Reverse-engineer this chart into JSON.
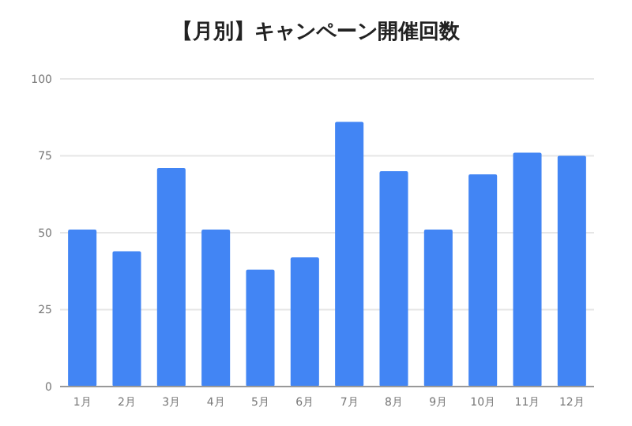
{
  "chart_data": {
    "type": "bar",
    "title": "【月別】キャンペーン開催回数",
    "categories": [
      "1月",
      "2月",
      "3月",
      "4月",
      "5月",
      "6月",
      "7月",
      "8月",
      "9月",
      "10月",
      "11月",
      "12月"
    ],
    "values": [
      51,
      44,
      71,
      51,
      38,
      42,
      86,
      70,
      51,
      69,
      76,
      75
    ],
    "color": "#4285f4",
    "ylim": [
      0,
      100
    ],
    "yticks": [
      0,
      25,
      50,
      75,
      100
    ],
    "grid": "y"
  }
}
